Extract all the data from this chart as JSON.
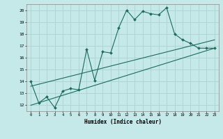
{
  "title": "",
  "xlabel": "Humidex (Indice chaleur)",
  "ylabel": "",
  "background_color": "#c5e8e8",
  "grid_color": "#b0d4d4",
  "line_color": "#1a6b5a",
  "xlim": [
    -0.5,
    23.5
  ],
  "ylim": [
    11.5,
    20.5
  ],
  "xticks": [
    0,
    1,
    2,
    3,
    4,
    5,
    6,
    7,
    8,
    9,
    10,
    11,
    12,
    13,
    14,
    15,
    16,
    17,
    18,
    19,
    20,
    21,
    22,
    23
  ],
  "yticks": [
    12,
    13,
    14,
    15,
    16,
    17,
    18,
    19,
    20
  ],
  "line1_x": [
    0,
    1,
    2,
    3,
    4,
    5,
    6,
    7,
    8,
    9,
    10,
    11,
    12,
    13,
    14,
    15,
    16,
    17,
    18,
    19,
    20,
    21,
    22,
    23
  ],
  "line1_y": [
    14.0,
    12.2,
    12.7,
    11.8,
    13.2,
    13.4,
    13.3,
    16.7,
    14.1,
    16.5,
    16.4,
    18.5,
    20.0,
    19.2,
    19.9,
    19.7,
    19.6,
    20.2,
    18.0,
    17.5,
    17.2,
    16.8,
    16.8,
    16.8
  ],
  "line2_x": [
    0,
    23
  ],
  "line2_y": [
    12.0,
    16.8
  ],
  "line3_x": [
    0,
    23
  ],
  "line3_y": [
    13.6,
    17.5
  ]
}
